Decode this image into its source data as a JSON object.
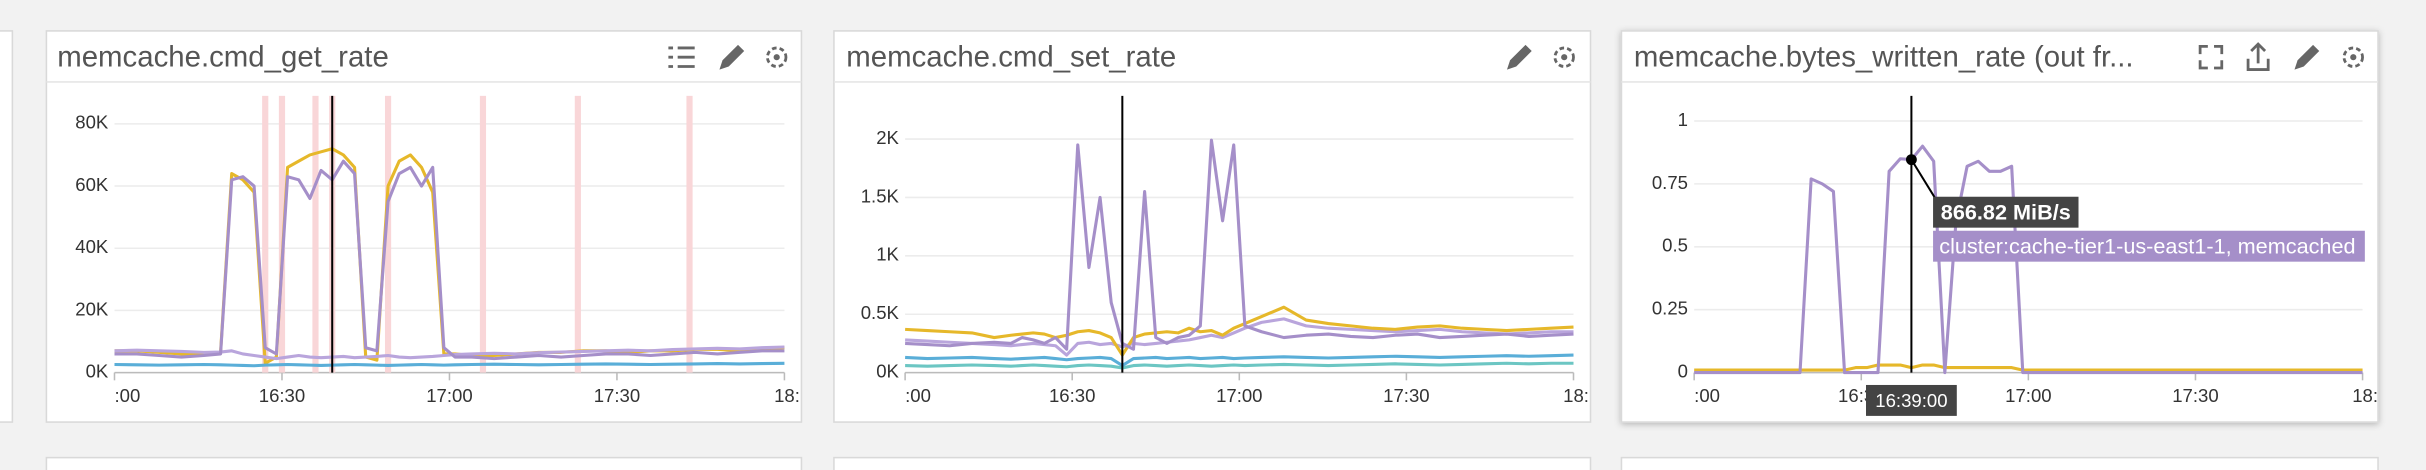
{
  "chart_data": [
    {
      "type": "line",
      "title": "memcache.cmd_get_rate",
      "x": [
        "16:00",
        "16:04",
        "16:08",
        "16:12",
        "16:16",
        "16:19",
        "16:21",
        "16:23",
        "16:25",
        "16:27",
        "16:29",
        "16:31",
        "16:33",
        "16:35",
        "16:37",
        "16:39",
        "16:41",
        "16:43",
        "16:45",
        "16:47",
        "16:49",
        "16:51",
        "16:53",
        "16:55",
        "16:57",
        "16:59",
        "17:01",
        "17:04",
        "17:08",
        "17:12",
        "17:16",
        "17:20",
        "17:24",
        "17:28",
        "17:32",
        "17:36",
        "17:40",
        "17:44",
        "17:48",
        "17:52",
        "17:56",
        "18:00"
      ],
      "xlim": [
        "16:00",
        "18:00"
      ],
      "xticks": [
        {
          "value": "16:00",
          "label": ":00"
        },
        "16:30",
        "17:00",
        "17:30",
        {
          "value": "18:00",
          "label": "18:"
        }
      ],
      "ylim": [
        0,
        89000
      ],
      "yticks": [
        {
          "value": 0,
          "label": "0K"
        },
        {
          "value": 20000,
          "label": "20K"
        },
        {
          "value": 40000,
          "label": "40K"
        },
        {
          "value": 60000,
          "label": "60K"
        },
        {
          "value": 80000,
          "label": "80K"
        }
      ],
      "grid": true,
      "events": [
        "16:27",
        "16:30",
        "16:36",
        "16:39",
        "16:49",
        "17:06",
        "17:23",
        "17:43"
      ],
      "event_color": "#f9d6d8",
      "series": [
        {
          "color": "#e6b82a",
          "values": [
            7000,
            7000,
            6500,
            6000,
            6000,
            6500,
            64000,
            62000,
            58000,
            3000,
            5000,
            66000,
            68000,
            70000,
            71000,
            72000,
            70000,
            66000,
            5000,
            4000,
            60000,
            68000,
            70000,
            66000,
            58000,
            6000,
            6000,
            5500,
            5500,
            6000,
            6500,
            6500,
            7000,
            7000,
            6500,
            7000,
            7000,
            7500,
            7500,
            7000,
            7500,
            8000
          ]
        },
        {
          "color": "#b9a5dc",
          "values": [
            7000,
            7200,
            7000,
            6800,
            6500,
            6600,
            7000,
            6000,
            5500,
            5000,
            4500,
            5000,
            5500,
            5000,
            4800,
            5000,
            5200,
            4800,
            5000,
            5200,
            5500,
            5000,
            4800,
            5000,
            5200,
            5500,
            5800,
            6000,
            6200,
            6000,
            6400,
            6600,
            6800,
            7000,
            7200,
            7000,
            7400,
            7600,
            7800,
            7600,
            8000,
            8200
          ]
        },
        {
          "color": "#5aaed8",
          "values": [
            2600,
            2500,
            2400,
            2500,
            2600,
            2500,
            2400,
            2300,
            2200,
            2400,
            2500,
            2600,
            2500,
            2400,
            2300,
            2400,
            2500,
            2600,
            2500,
            2400,
            2300,
            2400,
            2500,
            2600,
            2500,
            2400,
            2500,
            2600,
            2700,
            2600,
            2500,
            2600,
            2700,
            2800,
            2700,
            2600,
            2700,
            2800,
            2900,
            2800,
            2900,
            3000
          ]
        },
        {
          "color": "#a58fc9",
          "values": [
            6000,
            6000,
            5500,
            5000,
            5500,
            6000,
            62000,
            63000,
            60000,
            8000,
            6000,
            63000,
            62000,
            56000,
            65000,
            62000,
            68000,
            64000,
            8000,
            7000,
            55000,
            64000,
            66000,
            60000,
            66000,
            8000,
            5000,
            5000,
            4500,
            5000,
            5500,
            5000,
            5500,
            6000,
            6000,
            5500,
            6000,
            6500,
            6000,
            6500,
            7000,
            7000
          ]
        }
      ]
    },
    {
      "type": "line",
      "title": "memcache.cmd_set_rate",
      "x": [
        "16:00",
        "16:04",
        "16:08",
        "16:12",
        "16:16",
        "16:19",
        "16:21",
        "16:23",
        "16:25",
        "16:27",
        "16:29",
        "16:31",
        "16:33",
        "16:35",
        "16:37",
        "16:39",
        "16:41",
        "16:43",
        "16:45",
        "16:47",
        "16:49",
        "16:51",
        "16:53",
        "16:55",
        "16:57",
        "16:59",
        "17:01",
        "17:04",
        "17:08",
        "17:12",
        "17:16",
        "17:20",
        "17:24",
        "17:28",
        "17:32",
        "17:36",
        "17:40",
        "17:44",
        "17:48",
        "17:52",
        "17:56",
        "18:00"
      ],
      "xlim": [
        "16:00",
        "18:00"
      ],
      "xticks": [
        {
          "value": "16:00",
          "label": ":00"
        },
        "16:30",
        "17:00",
        "17:30",
        {
          "value": "18:00",
          "label": "18:"
        }
      ],
      "ylim": [
        0,
        2370
      ],
      "yticks": [
        {
          "value": 0,
          "label": "0K"
        },
        {
          "value": 500,
          "label": "0.5K"
        },
        {
          "value": 1000,
          "label": "1K"
        },
        {
          "value": 1500,
          "label": "1.5K"
        },
        {
          "value": 2000,
          "label": "2K"
        }
      ],
      "grid": true,
      "series": [
        {
          "color": "#6cc6c3",
          "values": [
            60,
            55,
            60,
            65,
            60,
            55,
            60,
            65,
            60,
            55,
            50,
            60,
            65,
            60,
            55,
            40,
            60,
            65,
            60,
            55,
            60,
            65,
            60,
            55,
            60,
            65,
            60,
            65,
            70,
            65,
            60,
            65,
            70,
            75,
            70,
            65,
            70,
            75,
            80,
            75,
            80,
            80
          ]
        },
        {
          "color": "#5aaed8",
          "values": [
            130,
            120,
            125,
            130,
            120,
            115,
            120,
            125,
            130,
            120,
            110,
            120,
            125,
            130,
            120,
            60,
            120,
            125,
            130,
            120,
            125,
            130,
            120,
            125,
            130,
            120,
            125,
            130,
            135,
            130,
            125,
            130,
            135,
            140,
            135,
            130,
            135,
            140,
            145,
            140,
            145,
            150
          ]
        },
        {
          "color": "#b9a5dc",
          "values": [
            280,
            270,
            260,
            250,
            240,
            230,
            240,
            250,
            240,
            230,
            150,
            250,
            260,
            240,
            250,
            220,
            250,
            240,
            250,
            260,
            270,
            280,
            300,
            320,
            300,
            340,
            380,
            430,
            460,
            400,
            380,
            370,
            360,
            350,
            360,
            370,
            350,
            340,
            330,
            340,
            350,
            350
          ]
        },
        {
          "color": "#e6b82a",
          "values": [
            370,
            360,
            350,
            340,
            300,
            320,
            330,
            340,
            330,
            300,
            320,
            350,
            360,
            340,
            300,
            150,
            300,
            330,
            340,
            350,
            340,
            380,
            350,
            360,
            320,
            380,
            420,
            480,
            560,
            450,
            420,
            400,
            380,
            370,
            390,
            400,
            380,
            370,
            360,
            370,
            380,
            390
          ]
        },
        {
          "color": "#a58fc9",
          "values": [
            250,
            240,
            230,
            250,
            260,
            250,
            300,
            280,
            250,
            300,
            200,
            1950,
            900,
            1500,
            600,
            250,
            200,
            1550,
            300,
            250,
            300,
            320,
            400,
            1990,
            1300,
            1950,
            400,
            350,
            300,
            320,
            330,
            310,
            300,
            320,
            330,
            300,
            310,
            320,
            330,
            310,
            320,
            330
          ]
        }
      ]
    },
    {
      "type": "line",
      "title": "memcache.bytes_written_rate (out fr...",
      "x": [
        "16:00",
        "16:04",
        "16:08",
        "16:12",
        "16:16",
        "16:19",
        "16:21",
        "16:23",
        "16:25",
        "16:27",
        "16:29",
        "16:31",
        "16:33",
        "16:35",
        "16:37",
        "16:39",
        "16:41",
        "16:43",
        "16:45",
        "16:47",
        "16:49",
        "16:51",
        "16:53",
        "16:55",
        "16:57",
        "16:59",
        "17:01",
        "17:04",
        "17:08",
        "17:12",
        "17:16",
        "17:20",
        "17:24",
        "17:28",
        "17:32",
        "17:36",
        "17:40",
        "17:44",
        "17:48",
        "17:52",
        "17:56",
        "18:00"
      ],
      "xlim": [
        "16:00",
        "18:00"
      ],
      "xticks": [
        {
          "value": "16:00",
          "label": ":00"
        },
        "16:30",
        "17:00",
        "17:30",
        {
          "value": "18:00",
          "label": "18:"
        }
      ],
      "ylim": [
        0,
        1.1
      ],
      "yticks": [
        0,
        0.25,
        0.5,
        0.75,
        1
      ],
      "grid": true,
      "series": [
        {
          "color": "#e6b82a",
          "values": [
            0.01,
            0.01,
            0.01,
            0.01,
            0.01,
            0.01,
            0.01,
            0.01,
            0.01,
            0.01,
            0.02,
            0.02,
            0.03,
            0.03,
            0.03,
            0.02,
            0.03,
            0.03,
            0.02,
            0.02,
            0.02,
            0.02,
            0.02,
            0.02,
            0.02,
            0.01,
            0.01,
            0.01,
            0.01,
            0.01,
            0.01,
            0.01,
            0.01,
            0.01,
            0.01,
            0.01,
            0.01,
            0.01,
            0.01,
            0.01,
            0.01,
            0.01
          ]
        },
        {
          "color": "#a58fc9",
          "values": [
            0,
            0,
            0,
            0,
            0,
            0,
            0.77,
            0.75,
            0.72,
            0,
            0,
            0,
            0,
            0.8,
            0.85,
            0.8465,
            0.9,
            0.84,
            0,
            0.6,
            0.82,
            0.84,
            0.8,
            0.8,
            0.82,
            0,
            0,
            0,
            0,
            0,
            0,
            0,
            0,
            0,
            0,
            0,
            0,
            0,
            0,
            0,
            0,
            0
          ]
        }
      ],
      "tooltip": {
        "time": "16:39:00",
        "value": 0.8465,
        "value_label": "866.82 MiB/s",
        "series": "cluster:cache-tier1-us-east1-1, memcached"
      }
    }
  ]
}
